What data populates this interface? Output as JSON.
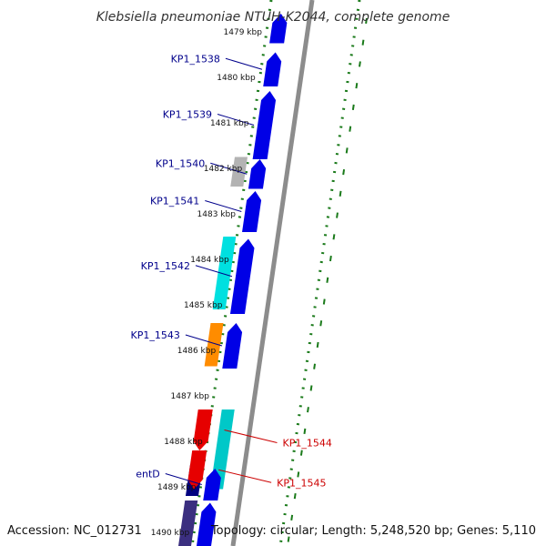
{
  "header": {
    "title": "Klebsiella pneumoniae NTUH-K2044, complete genome"
  },
  "footer": {
    "accession": "Accession: NC_012731",
    "topology": "Topology: circular; Length: 5,248,520 bp; Genes: 5,110"
  },
  "map": {
    "tick_unit": "kbp",
    "ticks": [
      "1479 kbp",
      "1480 kbp",
      "1481 kbp",
      "1482 kbp",
      "1483 kbp",
      "1484 kbp",
      "1485 kbp",
      "1486 kbp",
      "1487 kbp",
      "1488 kbp",
      "1489 kbp",
      "1490 kbp"
    ],
    "colors": {
      "backbone": "#8c8c8c",
      "tick_marks": "#1a7a1a",
      "label_forward": "#00008b",
      "label_reverse": "#cc0000"
    }
  },
  "genes": [
    {
      "name": "KP1_1538",
      "strand": "+",
      "color": "#0000e6",
      "start_kbp": 1479.45,
      "end_kbp": 1480.2
    },
    {
      "name": "KP1_1539",
      "strand": "+",
      "color": "#0000e6",
      "start_kbp": 1480.3,
      "end_kbp": 1481.8
    },
    {
      "name": "KP1_1540",
      "strand": "+",
      "color": "#0000e6",
      "start_kbp": 1481.8,
      "end_kbp": 1482.45
    },
    {
      "name": "KP1_1541",
      "strand": "+",
      "color": "#0000e6",
      "start_kbp": 1482.5,
      "end_kbp": 1483.4
    },
    {
      "name": "KP1_1542",
      "strand": "+",
      "color": "#0000e6",
      "start_kbp": 1483.55,
      "end_kbp": 1485.2
    },
    {
      "name": "KP1_1543",
      "strand": "+",
      "color": "#0000e6",
      "start_kbp": 1485.4,
      "end_kbp": 1486.4
    },
    {
      "name": "entD",
      "strand": "+",
      "color": "#0000e6",
      "start_kbp": 1488.6,
      "end_kbp": 1489.3
    },
    {
      "name": "KP1_1544",
      "strand": "-",
      "color": "#e60000",
      "start_kbp": 1487.3,
      "end_kbp": 1488.2
    },
    {
      "name": "KP1_1545",
      "strand": "-",
      "color": "#e60000",
      "start_kbp": 1488.2,
      "end_kbp": 1489.05
    }
  ],
  "features": [
    {
      "type": "gene",
      "color": "#0000e6",
      "start_kbp": 1478.6,
      "end_kbp": 1479.25
    },
    {
      "type": "gene",
      "color": "#0000e6",
      "start_kbp": 1489.35,
      "end_kbp": 1490.4
    }
  ],
  "rna_tracks": [
    {
      "color": "#b3b3b3",
      "start_kbp": 1481.75,
      "end_kbp": 1482.4,
      "side": "forward"
    },
    {
      "color": "#00e0e0",
      "start_kbp": 1483.5,
      "end_kbp": 1485.1,
      "side": "forward"
    },
    {
      "color": "#ff8c00",
      "start_kbp": 1485.4,
      "end_kbp": 1486.35,
      "side": "forward"
    },
    {
      "color": "#000080",
      "start_kbp": 1488.5,
      "end_kbp": 1489.2,
      "side": "forward"
    },
    {
      "color": "#3b2f80",
      "start_kbp": 1489.3,
      "end_kbp": 1490.5,
      "side": "forward"
    },
    {
      "color": "#00c8c8",
      "start_kbp": 1487.3,
      "end_kbp": 1489.05,
      "side": "reverse"
    }
  ]
}
